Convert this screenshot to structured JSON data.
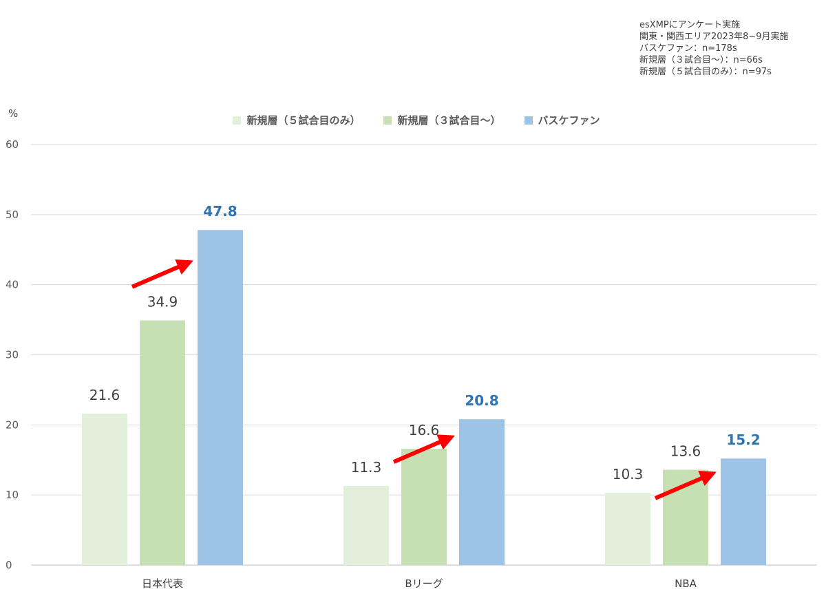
{
  "note": {
    "lines": [
      "esXMPにアンケート実施",
      "関東・関西エリア2023年8~9月実施",
      "バスケファン：n=178s",
      "新規層（３試合目～）：n=66s",
      "新規層（５試合目のみ）：n=97s"
    ]
  },
  "chart_data": {
    "type": "bar",
    "title": "",
    "xlabel": "",
    "ylabel": "%",
    "ylim": [
      0,
      60
    ],
    "yticks": [
      0,
      10,
      20,
      30,
      40,
      50,
      60
    ],
    "grid": true,
    "legend_position": "top-center",
    "categories": [
      "日本代表",
      "Bリーグ",
      "NBA"
    ],
    "series": [
      {
        "name": "新規層（５試合目のみ）",
        "color": "#E2EFDA",
        "label_color": "#404040",
        "label_bold": false,
        "values": [
          21.6,
          11.3,
          10.3
        ]
      },
      {
        "name": "新規層（３試合目～）",
        "color": "#C6E0B4",
        "label_color": "#404040",
        "label_bold": false,
        "values": [
          34.9,
          16.6,
          13.6
        ]
      },
      {
        "name": "バスケファン",
        "color": "#9DC3E6",
        "label_color": "#2E75B6",
        "label_bold": true,
        "values": [
          47.8,
          20.8,
          15.2
        ]
      }
    ],
    "annotations": [
      {
        "type": "arrow",
        "color": "#FF0000",
        "category": "日本代表",
        "from_series": 1,
        "to_series": 2
      },
      {
        "type": "arrow",
        "color": "#FF0000",
        "category": "Bリーグ",
        "from_series": 1,
        "to_series": 2
      },
      {
        "type": "arrow",
        "color": "#FF0000",
        "category": "NBA",
        "from_series": 1,
        "to_series": 2
      }
    ]
  }
}
